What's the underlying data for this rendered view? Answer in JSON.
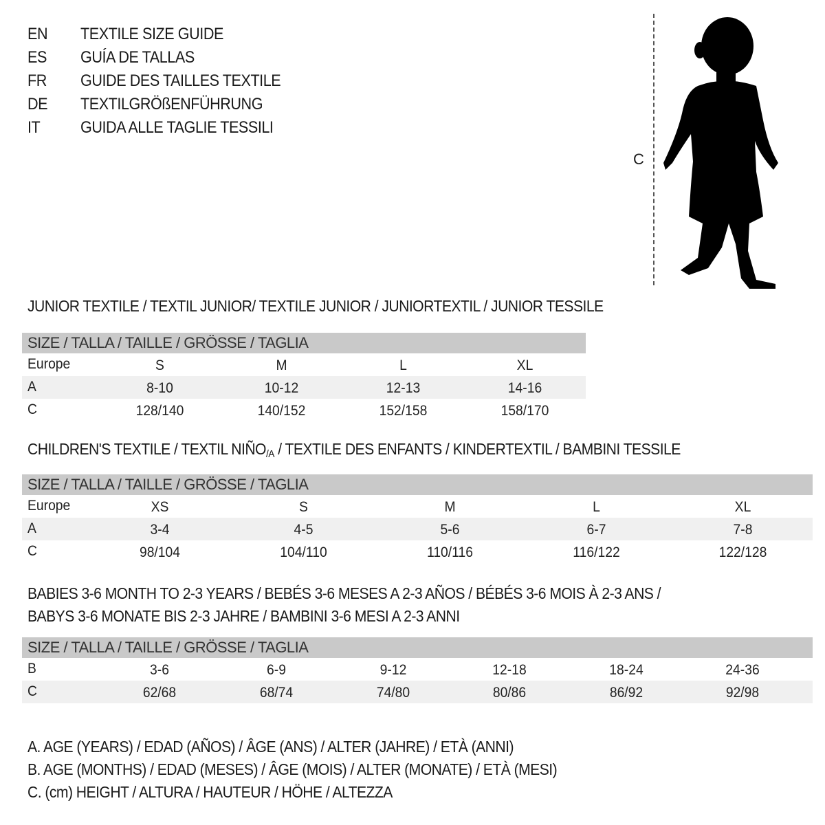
{
  "header": [
    {
      "code": "EN",
      "text": "TEXTILE SIZE GUIDE"
    },
    {
      "code": "ES",
      "text": "GUÍA DE TALLAS"
    },
    {
      "code": "FR",
      "text": "GUIDE DES TAILLES TEXTILE"
    },
    {
      "code": "DE",
      "text": "TEXTILGRÖßENFÜHRUNG"
    },
    {
      "code": "IT",
      "text": "GUIDA ALLE TAGLIE TESSILI"
    }
  ],
  "figure": {
    "measure_label": "C"
  },
  "size_header": "SIZE / TALLA / TAILLE / GRÖSSE / TAGLIA",
  "junior": {
    "title": "JUNIOR TEXTILE / TEXTIL JUNIOR/ TEXTILE JUNIOR / JUNIORTEXTIL / JUNIOR TESSILE",
    "rows": [
      {
        "label": "Europe",
        "values": [
          "S",
          "M",
          "L",
          "XL"
        ]
      },
      {
        "label": "A",
        "values": [
          "8-10",
          "10-12",
          "12-13",
          "14-16"
        ]
      },
      {
        "label": "C",
        "values": [
          "128/140",
          "140/152",
          "152/158",
          "158/170"
        ]
      }
    ]
  },
  "children": {
    "title_a": "CHILDREN'S TEXTILE / TEXTIL NIÑO",
    "title_sub": "/A",
    "title_b": " / TEXTILE DES ENFANTS / KINDERTEXTIL / BAMBINI TESSILE",
    "rows": [
      {
        "label": "Europe",
        "values": [
          "XS",
          "S",
          "M",
          "L",
          "XL"
        ]
      },
      {
        "label": "A",
        "values": [
          "3-4",
          "4-5",
          "5-6",
          "6-7",
          "7-8"
        ]
      },
      {
        "label": "C",
        "values": [
          "98/104",
          "104/110",
          "110/116",
          "116/122",
          "122/128"
        ]
      }
    ]
  },
  "babies": {
    "title_1": "BABIES 3-6 MONTH TO 2-3 YEARS / BEBÉS 3-6 MESES A 2-3 AÑOS / BÉBÉS 3-6 MOIS À 2-3 ANS /",
    "title_2": "BABYS 3-6 MONATE BIS 2-3 JAHRE / BAMBINI 3-6 MESI A 2-3 ANNI",
    "rows": [
      {
        "label": "B",
        "values": [
          "3-6",
          "6-9",
          "9-12",
          "12-18",
          "18-24",
          "24-36"
        ]
      },
      {
        "label": "C",
        "values": [
          "62/68",
          "68/74",
          "74/80",
          "80/86",
          "86/92",
          "92/98"
        ]
      }
    ]
  },
  "legend": [
    "A. AGE (YEARS) / EDAD (AÑOS) / ÂGE (ANS) / ALTER (JAHRE) / ETÀ (ANNI)",
    "B. AGE (MONTHS) / EDAD (MESES) / ÂGE (MOIS) / ALTER (MONATE) / ETÀ (MESI)",
    "C. (cm) HEIGHT / ALTURA / HAUTEUR / HÖHE / ALTEZZA"
  ]
}
